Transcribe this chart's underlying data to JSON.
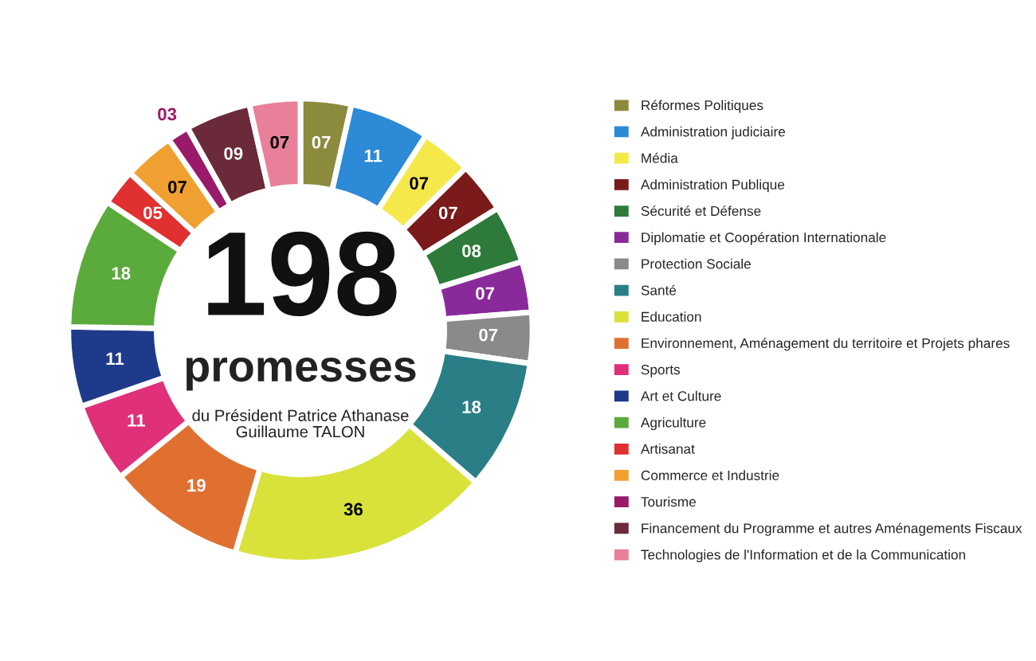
{
  "chart_data": {
    "type": "donut",
    "title": "198",
    "subtitle": "promesses",
    "annotations": [
      "du Président Patrice Athanase\nGuillaume TALON"
    ],
    "categories": [
      "Réformes Politiques",
      "Administration judiciaire",
      "Média",
      "Administration Publique",
      "Sécurité et Défense",
      "Diplomatie et Coopération Internationale",
      "Protection Sociale",
      "Santé",
      "Education",
      "Environnement, Aménagement du territoire et Projets phares",
      "Sports",
      "Art et Culture",
      "Agriculture",
      "Artisanat",
      "Commerce et Industrie",
      "Tourisme",
      "Financement du Programme et autres Aménagements Fiscaux",
      "Technologies de l'Information et de la Communication"
    ],
    "values": [
      7,
      11,
      7,
      7,
      8,
      7,
      7,
      18,
      36,
      19,
      11,
      11,
      18,
      5,
      7,
      3,
      9,
      7
    ],
    "value_labels": [
      "07",
      "11",
      "07",
      "07",
      "08",
      "07",
      "07",
      "18",
      "36",
      "19",
      "11",
      "11",
      "18",
      "05",
      "07",
      "03",
      "09",
      "07"
    ],
    "colors": [
      "#8c8a3c",
      "#2d8ad6",
      "#f5e84a",
      "#7a1a1a",
      "#2e7a3a",
      "#8a2a9a",
      "#8a8a8a",
      "#2a7f86",
      "#d9e23a",
      "#e07030",
      "#e0307a",
      "#1e3a8a",
      "#5aaa3c",
      "#e03030",
      "#f0a030",
      "#9a1a6a",
      "#6a2a3a",
      "#e8809a"
    ],
    "legend": "right"
  }
}
